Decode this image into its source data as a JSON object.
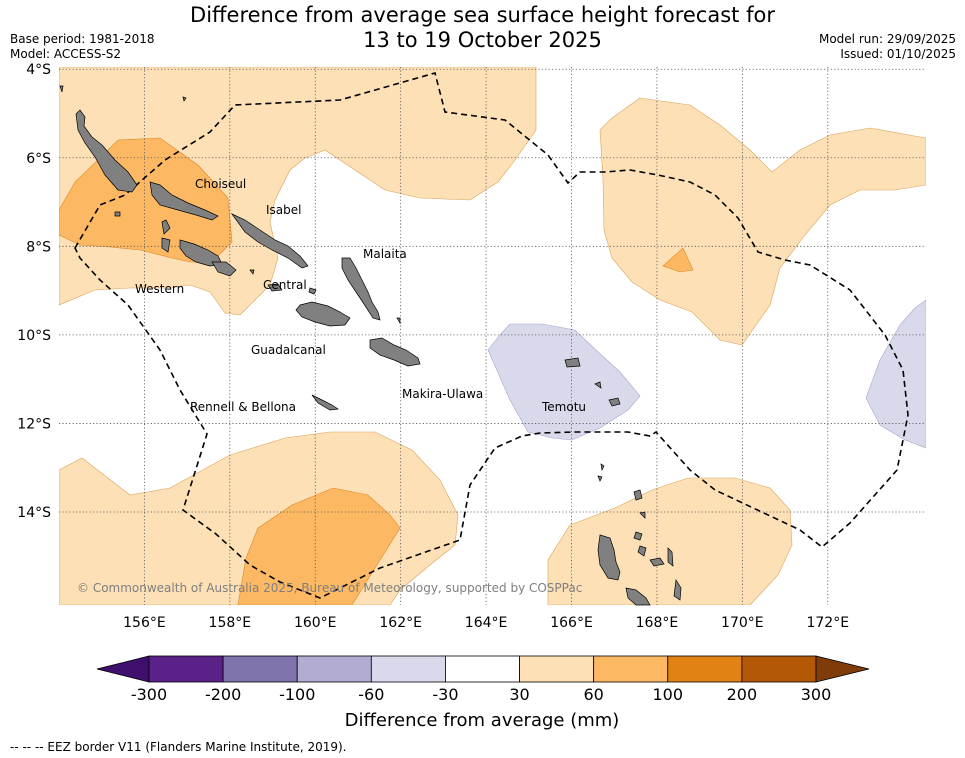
{
  "title_line1": "Difference from average sea surface height forecast for",
  "title_line2": "13 to 19 October 2025",
  "meta_left": [
    "Base period: 1981-2018",
    "Model: ACCESS-S2"
  ],
  "meta_right": [
    "Model run: 29/09/2025",
    "Issued: 01/10/2025"
  ],
  "map": {
    "lon_range": [
      154,
      174.3
    ],
    "lat_range": [
      -16.1,
      -3.95
    ],
    "lat_ticks": [
      "4°S",
      "6°S",
      "8°S",
      "10°S",
      "12°S",
      "14°S"
    ],
    "lon_ticks": [
      "156°E",
      "158°E",
      "160°E",
      "162°E",
      "164°E",
      "166°E",
      "168°E",
      "170°E",
      "172°E"
    ],
    "region_labels": [
      "Choiseul",
      "Isabel",
      "Malaita",
      "Western",
      "Central",
      "Guadalcanal",
      "Makira-Ulawa",
      "Rennell & Bellona",
      "Temotu"
    ],
    "copyright": "© Commonwealth of Australia 2025, Bureau of Meteorology, supported by COSPPac"
  },
  "colorbar": {
    "label": "Difference from average (mm)",
    "ticks": [
      "-300",
      "-200",
      "-100",
      "-60",
      "-30",
      "30",
      "60",
      "100",
      "200",
      "300"
    ],
    "colors": [
      "#3f0f6e",
      "#5a2289",
      "#8073ac",
      "#b2abd2",
      "#d8daeb",
      "#ffffff",
      "#fee0b6",
      "#fdb863",
      "#e08214",
      "#b35806",
      "#7f3b08"
    ]
  },
  "footnote": "-- -- -- EEZ border V11 (Flanders Marine Institute, 2019)."
}
